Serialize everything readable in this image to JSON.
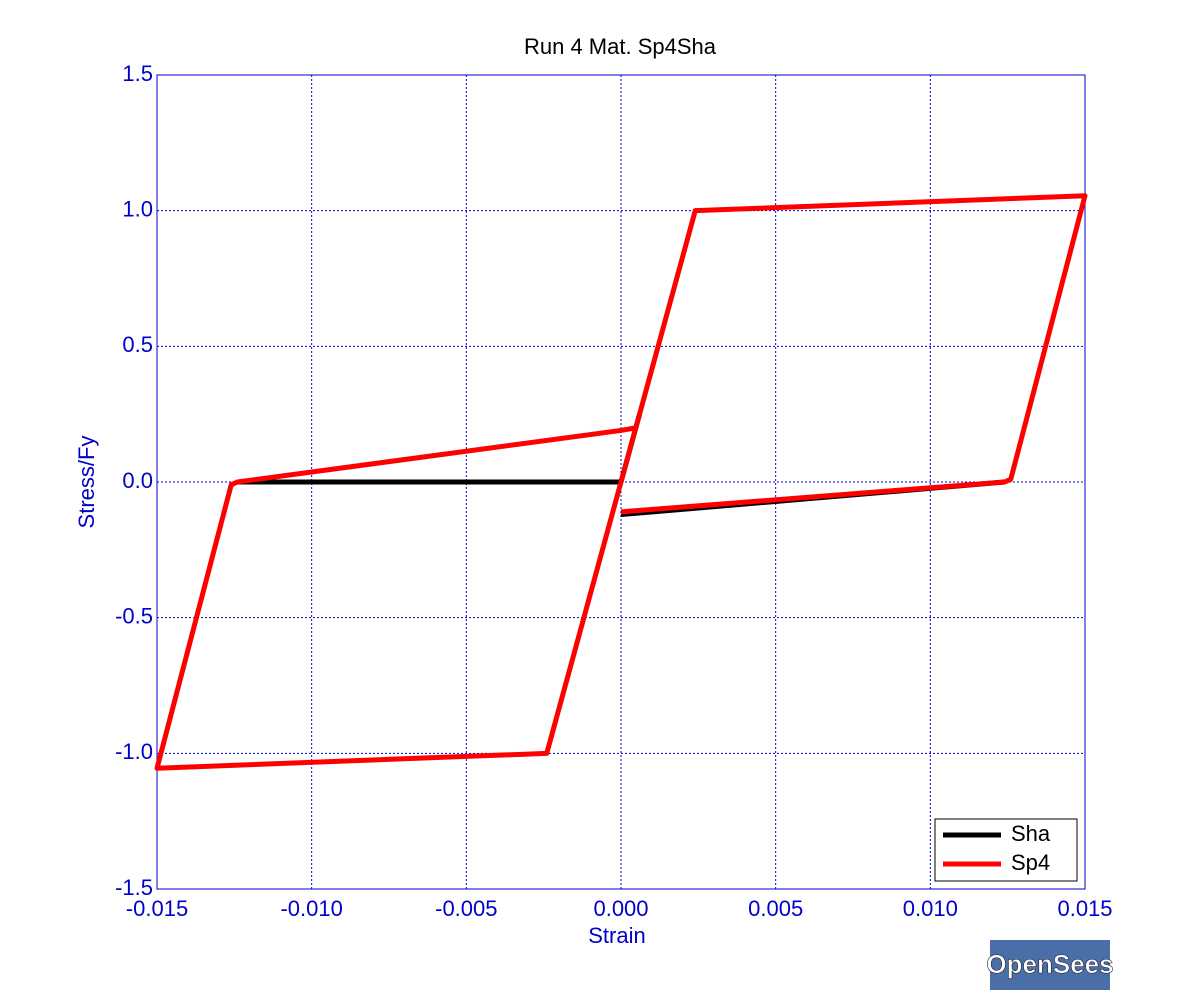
{
  "chart_data": {
    "type": "line",
    "title": "Run 4   Mat. Sp4Sha",
    "x_label": "Strain",
    "y_label": "Stress/Fy",
    "xlim": [
      -0.015,
      0.015
    ],
    "ylim": [
      -1.5,
      1.5
    ],
    "xticks": [
      -0.015,
      {
        "value": -0.01,
        "label": "-0.010"
      },
      -0.005,
      {
        "value": 0,
        "label": "0.000"
      },
      0.005,
      {
        "value": 0.01,
        "label": "0.010"
      },
      0.015
    ],
    "yticks": [
      -1.5,
      {
        "value": -1,
        "label": "-1.0"
      },
      -0.5,
      {
        "value": 0,
        "label": "0.0"
      },
      0.5,
      {
        "value": 1,
        "label": "1.0"
      },
      1.5
    ],
    "grid": true,
    "legend": "lower right",
    "series": [
      {
        "name": "Sha",
        "color": "#000000",
        "x": [
          -0.0124,
          0,
          0.0006,
          null,
          0,
          0.0124
        ],
        "values": [
          0,
          0,
          0.25,
          null,
          -0.12,
          0
        ]
      },
      {
        "name": "Sp4",
        "color": "#ff0000",
        "x": [
          0,
          0.0024,
          0.015,
          0.0126,
          0.0124,
          0,
          null,
          0.0005,
          0,
          -0.0124,
          -0.0126,
          -0.015,
          -0.0024,
          0
        ],
        "values": [
          0,
          1.0,
          1.055,
          0.01,
          0,
          -0.11,
          null,
          0.2,
          0.19,
          0,
          -0.01,
          -1.055,
          -1.0,
          0
        ]
      }
    ],
    "logo": "OpenSees"
  }
}
